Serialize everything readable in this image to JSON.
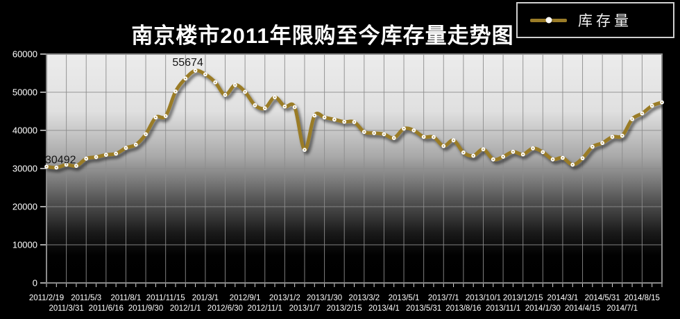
{
  "title": "南京楼市2011年限购至今库存量走势图",
  "legend": {
    "label": "库存量"
  },
  "colors": {
    "page_bg": "#000000",
    "line": "#9a7c28",
    "marker": "#ffffff",
    "grid": "#8c8c8c",
    "plot_border": "#8a8a8a",
    "axis_text": "#ffffff",
    "tick": "#dddddd",
    "annotation_text": "#141414",
    "plot_gradient_top": "#ececec",
    "plot_gradient_bottom": "#000000",
    "legend_border": "#d0d0d0"
  },
  "chart_data": {
    "type": "line",
    "title": "南京楼市2011年限购至今库存量走势图",
    "xlabel": "",
    "ylabel": "",
    "ylim": [
      0,
      60000
    ],
    "y_ticks": [
      0,
      10000,
      20000,
      30000,
      40000,
      50000,
      60000
    ],
    "grid": true,
    "smooth": true,
    "legend_position": "top-right",
    "label_every_n_points": 2,
    "x_labels": [
      "2011/2/19",
      "2011/3/31",
      "2011/5/3",
      "2011/6/16",
      "2011/8/1",
      "2011/9/30",
      "2011/11/15",
      "2012/1/1",
      "201/3/1",
      "2012/6/30",
      "2012/9/1",
      "2012/11/1",
      "2013/1/2",
      "2013/1/7",
      "2013/1/30",
      "2013/2/15",
      "2013/3/2",
      "2013/4/1",
      "2013/5/1",
      "2013/5/31",
      "2013/7/1",
      "2013/8/16",
      "2013/10/1",
      "2013/11/1",
      "2013/12/15",
      "2014/1/30",
      "2014/3/1",
      "2014/4/15",
      "2014/5/31",
      "2014/7/1",
      "2014/8/15"
    ],
    "series": [
      {
        "name": "库存量",
        "color": "#9a7c28",
        "values": [
          30492,
          30250,
          31000,
          30700,
          32600,
          33000,
          33600,
          33900,
          35400,
          36250,
          39000,
          43400,
          43750,
          50200,
          53600,
          55674,
          54700,
          52600,
          49300,
          51900,
          50100,
          46600,
          45800,
          48700,
          46250,
          46100,
          34900,
          43900,
          43400,
          42850,
          42250,
          42200,
          39600,
          39300,
          39000,
          38000,
          40450,
          40000,
          38300,
          38250,
          35900,
          37400,
          34200,
          33350,
          35050,
          32400,
          33100,
          34400,
          33700,
          35300,
          34300,
          32400,
          32800,
          31000,
          32700,
          35700,
          36700,
          38300,
          38600,
          42950,
          44450,
          46450,
          47350
        ]
      }
    ],
    "annotations": [
      {
        "point_index": 0,
        "text": "30492"
      },
      {
        "point_index": 15,
        "text": "55674"
      }
    ]
  }
}
